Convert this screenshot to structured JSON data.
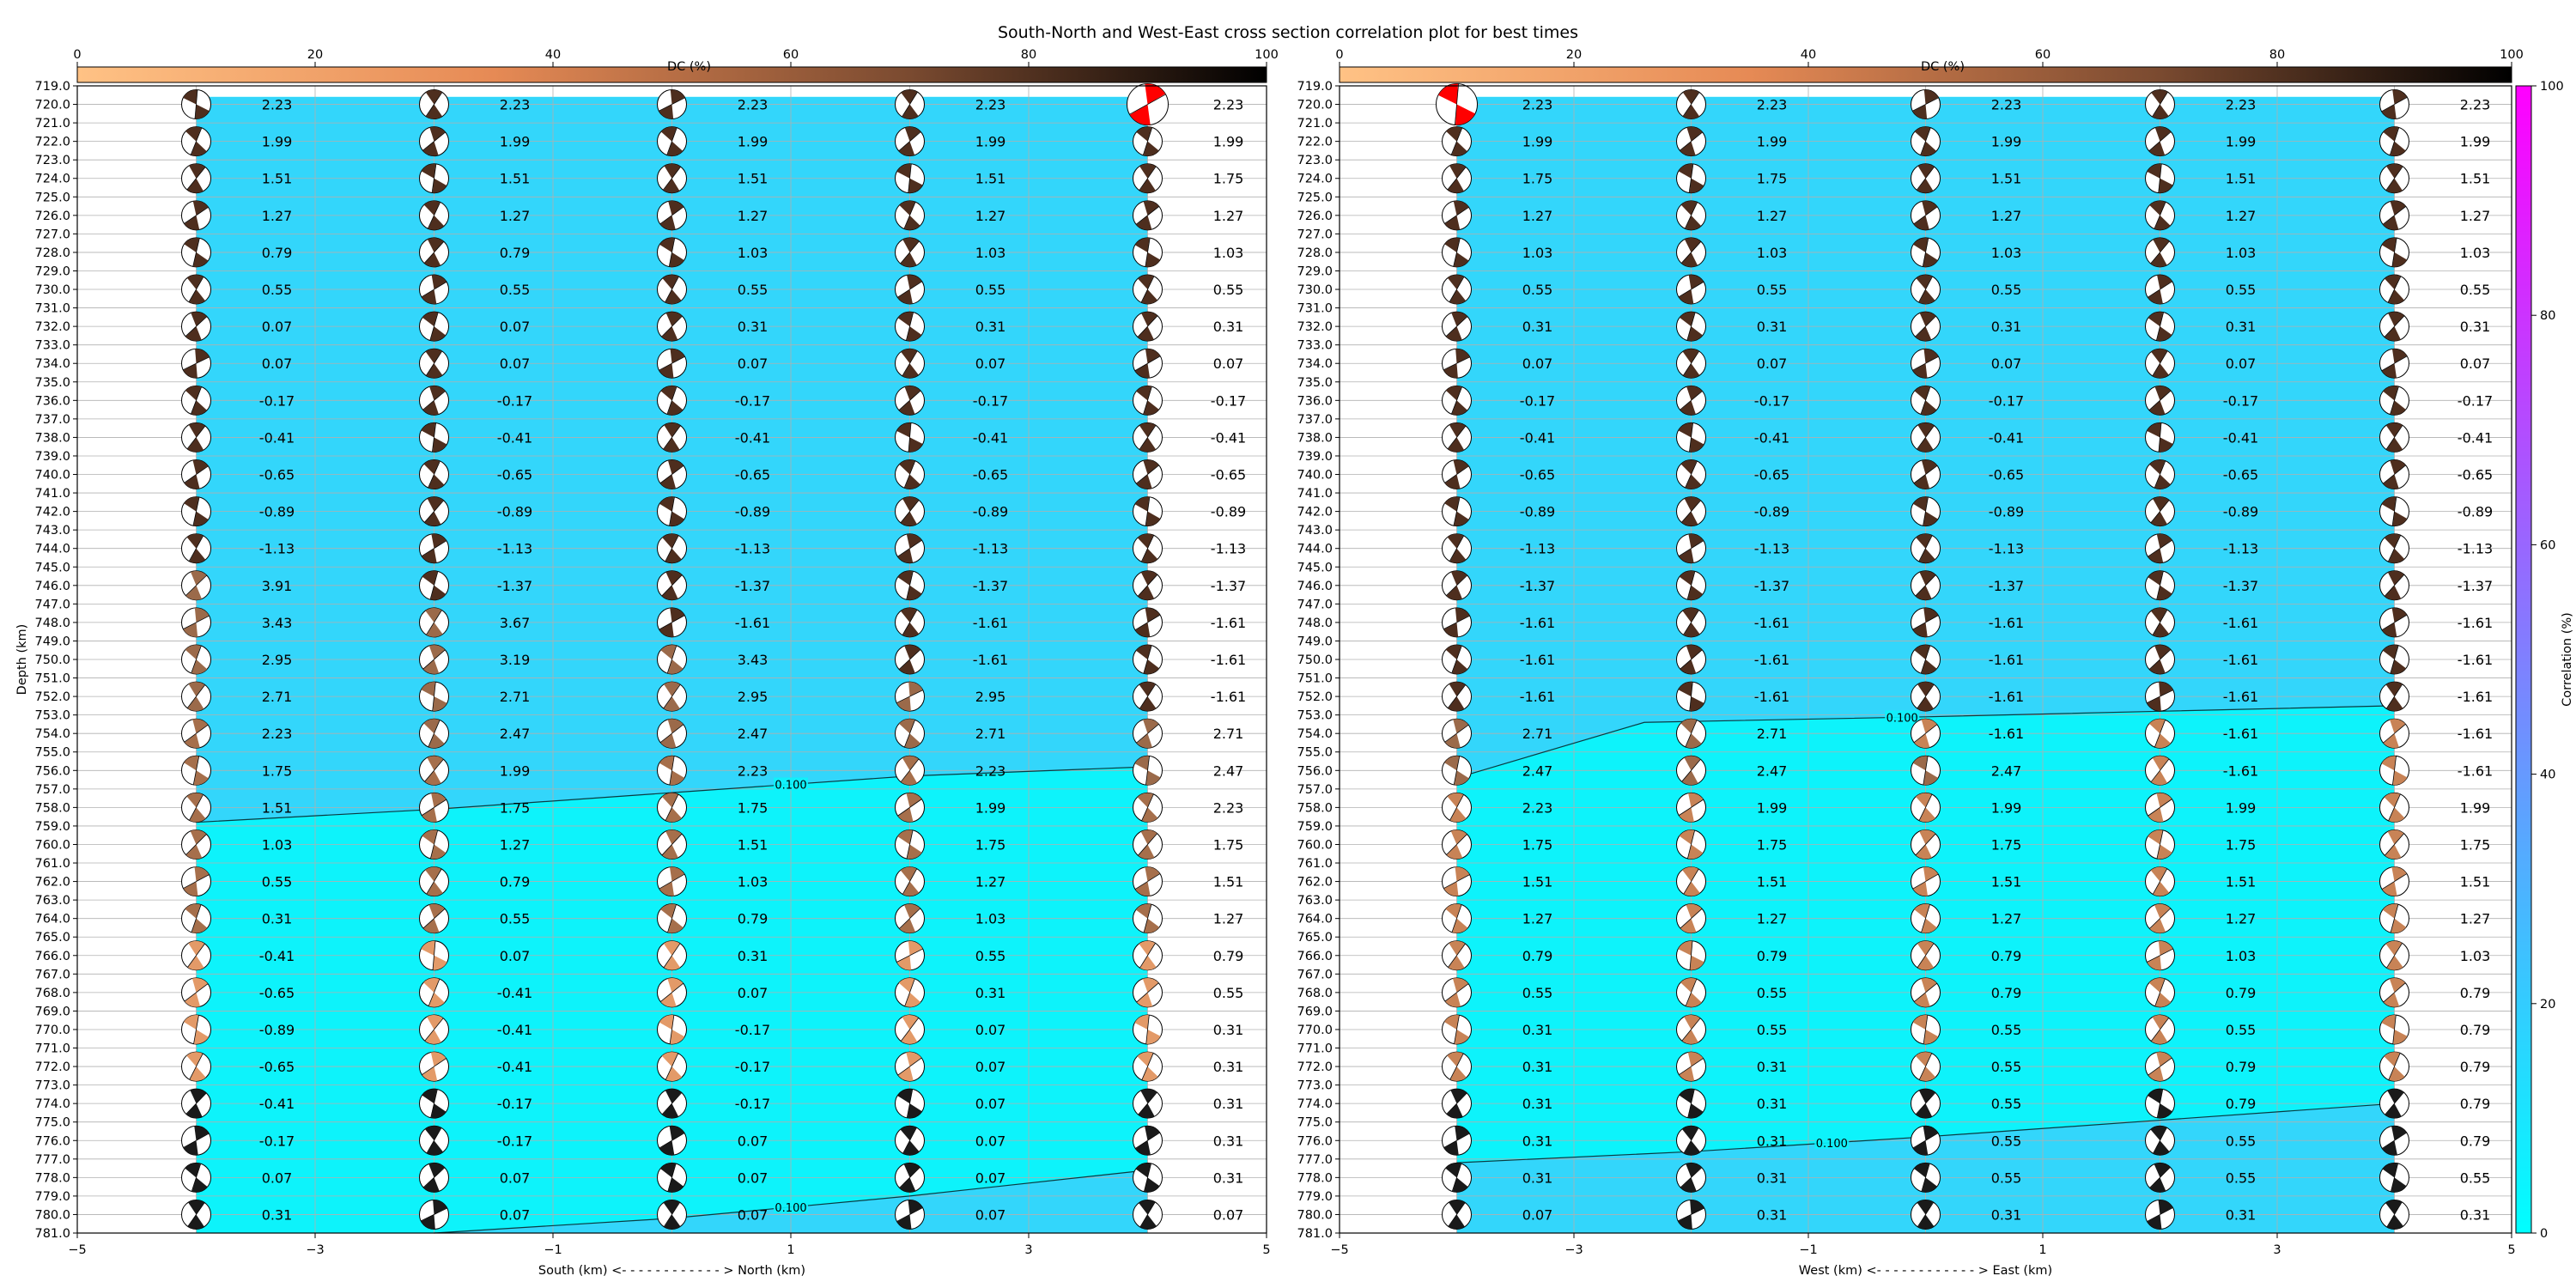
{
  "title": "South-North and West-East cross section correlation plot for best times",
  "colors": {
    "field_high": "#33d6fb",
    "field_low": "#0df3fb",
    "beachball_red": "#ff0000",
    "correlation_cmap": [
      "#00ffff",
      "#ff00ff"
    ],
    "dc_cmap": [
      "#ffb27a",
      "#000000"
    ]
  },
  "correlation_colorbar": {
    "label": "Correlation (%)",
    "ticks": [
      "0",
      "20",
      "40",
      "60",
      "80",
      "100"
    ],
    "range": [
      0,
      100
    ]
  },
  "depth_axis": {
    "label": "Depth (km)",
    "min": 719,
    "max": 781,
    "step": 1
  },
  "chart_data": [
    {
      "type": "table",
      "name": "south-north",
      "xlabel": "South (km) <- - - - - - - - - - - - > North (km)",
      "xlim": [
        -5,
        5
      ],
      "xticks": [
        "−5",
        "−3",
        "−1",
        "1",
        "3",
        "5"
      ],
      "dc_label": "DC (%)",
      "dc_ticks": [
        "0",
        "20",
        "40",
        "60",
        "80",
        "100"
      ],
      "columns_x": [
        -4,
        -2,
        0,
        2,
        4
      ],
      "depths": [
        720,
        722,
        724,
        726,
        728,
        730,
        732,
        734,
        736,
        738,
        740,
        742,
        744,
        746,
        748,
        750,
        752,
        754,
        756,
        758,
        760,
        762,
        764,
        766,
        768,
        770,
        772,
        774,
        776,
        778,
        780
      ],
      "values": [
        [
          "2.23",
          "2.23",
          "2.23",
          "2.23",
          "2.23"
        ],
        [
          "1.99",
          "1.99",
          "1.99",
          "1.99",
          "1.99"
        ],
        [
          "1.51",
          "1.51",
          "1.51",
          "1.51",
          "1.75"
        ],
        [
          "1.27",
          "1.27",
          "1.27",
          "1.27",
          "1.27"
        ],
        [
          "0.79",
          "0.79",
          "1.03",
          "1.03",
          "1.03"
        ],
        [
          "0.55",
          "0.55",
          "0.55",
          "0.55",
          "0.55"
        ],
        [
          "0.07",
          "0.07",
          "0.31",
          "0.31",
          "0.31"
        ],
        [
          "0.07",
          "0.07",
          "0.07",
          "0.07",
          "0.07"
        ],
        [
          "-0.17",
          "-0.17",
          "-0.17",
          "-0.17",
          "-0.17"
        ],
        [
          "-0.41",
          "-0.41",
          "-0.41",
          "-0.41",
          "-0.41"
        ],
        [
          "-0.65",
          "-0.65",
          "-0.65",
          "-0.65",
          "-0.65"
        ],
        [
          "-0.89",
          "-0.89",
          "-0.89",
          "-0.89",
          "-0.89"
        ],
        [
          "-1.13",
          "-1.13",
          "-1.13",
          "-1.13",
          "-1.13"
        ],
        [
          "3.91",
          "-1.37",
          "-1.37",
          "-1.37",
          "-1.37"
        ],
        [
          "3.43",
          "3.67",
          "-1.61",
          "-1.61",
          "-1.61"
        ],
        [
          "2.95",
          "3.19",
          "3.43",
          "-1.61",
          "-1.61"
        ],
        [
          "2.71",
          "2.71",
          "2.95",
          "2.95",
          "-1.61"
        ],
        [
          "2.23",
          "2.47",
          "2.47",
          "2.71",
          "2.71"
        ],
        [
          "1.75",
          "1.99",
          "2.23",
          "2.23",
          "2.47"
        ],
        [
          "1.51",
          "1.75",
          "1.75",
          "1.99",
          "2.23"
        ],
        [
          "1.03",
          "1.27",
          "1.51",
          "1.75",
          "1.75"
        ],
        [
          "0.55",
          "0.79",
          "1.03",
          "1.27",
          "1.51"
        ],
        [
          "0.31",
          "0.55",
          "0.79",
          "1.03",
          "1.27"
        ],
        [
          "-0.41",
          "0.07",
          "0.31",
          "0.55",
          "0.79"
        ],
        [
          "-0.65",
          "-0.41",
          "0.07",
          "0.31",
          "0.55"
        ],
        [
          "-0.89",
          "-0.41",
          "-0.17",
          "0.07",
          "0.31"
        ],
        [
          "-0.65",
          "-0.41",
          "-0.17",
          "0.07",
          "0.31"
        ],
        [
          "-0.41",
          "-0.17",
          "-0.17",
          "0.07",
          "0.31"
        ],
        [
          "-0.17",
          "-0.17",
          "0.07",
          "0.07",
          "0.31"
        ],
        [
          "0.07",
          "0.07",
          "0.07",
          "0.07",
          "0.31"
        ],
        [
          "0.31",
          "0.07",
          "0.07",
          "0.07",
          "0.07"
        ]
      ],
      "contours": [
        {
          "label": "0.100",
          "label_x": 1.0,
          "points": [
            [
              -4,
              758.8
            ],
            [
              -2,
              758.1
            ],
            [
              0,
              757.2
            ],
            [
              2,
              756.3
            ],
            [
              4,
              755.8
            ]
          ]
        },
        {
          "label": "0.100",
          "label_x": 1.0,
          "points": [
            [
              -2,
              781
            ],
            [
              0,
              780.2
            ],
            [
              2,
              779
            ],
            [
              4,
              777.6
            ]
          ]
        }
      ],
      "field_boundary": [
        [
          -4,
          719.6
        ],
        [
          4,
          719.6
        ],
        [
          4,
          777.6
        ],
        [
          2,
          779
        ],
        [
          0,
          780.2
        ],
        [
          -2,
          781
        ],
        [
          -4,
          781
        ]
      ]
    },
    {
      "type": "table",
      "name": "west-east",
      "xlabel": "West (km) <- - - - - - - - - - - - > East (km)",
      "xlim": [
        -5,
        5
      ],
      "xticks": [
        "−5",
        "−3",
        "−1",
        "1",
        "3",
        "5"
      ],
      "dc_label": "DC (%)",
      "dc_ticks": [
        "0",
        "20",
        "40",
        "60",
        "80",
        "100"
      ],
      "columns_x": [
        -4,
        -2,
        0,
        2,
        4
      ],
      "depths": [
        720,
        722,
        724,
        726,
        728,
        730,
        732,
        734,
        736,
        738,
        740,
        742,
        744,
        746,
        748,
        750,
        752,
        754,
        756,
        758,
        760,
        762,
        764,
        766,
        768,
        770,
        772,
        774,
        776,
        778,
        780
      ],
      "values": [
        [
          "2.23",
          "2.23",
          "2.23",
          "2.23",
          "2.23"
        ],
        [
          "1.99",
          "1.99",
          "1.99",
          "1.99",
          "1.99"
        ],
        [
          "1.75",
          "1.75",
          "1.51",
          "1.51",
          "1.51"
        ],
        [
          "1.27",
          "1.27",
          "1.27",
          "1.27",
          "1.27"
        ],
        [
          "1.03",
          "1.03",
          "1.03",
          "1.03",
          "1.03"
        ],
        [
          "0.55",
          "0.55",
          "0.55",
          "0.55",
          "0.55"
        ],
        [
          "0.31",
          "0.31",
          "0.31",
          "0.31",
          "0.31"
        ],
        [
          "0.07",
          "0.07",
          "0.07",
          "0.07",
          "0.07"
        ],
        [
          "-0.17",
          "-0.17",
          "-0.17",
          "-0.17",
          "-0.17"
        ],
        [
          "-0.41",
          "-0.41",
          "-0.41",
          "-0.41",
          "-0.41"
        ],
        [
          "-0.65",
          "-0.65",
          "-0.65",
          "-0.65",
          "-0.65"
        ],
        [
          "-0.89",
          "-0.89",
          "-0.89",
          "-0.89",
          "-0.89"
        ],
        [
          "-1.13",
          "-1.13",
          "-1.13",
          "-1.13",
          "-1.13"
        ],
        [
          "-1.37",
          "-1.37",
          "-1.37",
          "-1.37",
          "-1.37"
        ],
        [
          "-1.61",
          "-1.61",
          "-1.61",
          "-1.61",
          "-1.61"
        ],
        [
          "-1.61",
          "-1.61",
          "-1.61",
          "-1.61",
          "-1.61"
        ],
        [
          "-1.61",
          "-1.61",
          "-1.61",
          "-1.61",
          "-1.61"
        ],
        [
          "2.71",
          "2.71",
          "-1.61",
          "-1.61",
          "-1.61"
        ],
        [
          "2.47",
          "2.47",
          "2.47",
          "-1.61",
          "-1.61"
        ],
        [
          "2.23",
          "1.99",
          "1.99",
          "1.99",
          "1.99"
        ],
        [
          "1.75",
          "1.75",
          "1.75",
          "1.75",
          "1.75"
        ],
        [
          "1.51",
          "1.51",
          "1.51",
          "1.51",
          "1.51"
        ],
        [
          "1.27",
          "1.27",
          "1.27",
          "1.27",
          "1.27"
        ],
        [
          "0.79",
          "0.79",
          "0.79",
          "1.03",
          "1.03"
        ],
        [
          "0.55",
          "0.55",
          "0.79",
          "0.79",
          "0.79"
        ],
        [
          "0.31",
          "0.55",
          "0.55",
          "0.55",
          "0.79"
        ],
        [
          "0.31",
          "0.31",
          "0.55",
          "0.79",
          "0.79"
        ],
        [
          "0.31",
          "0.31",
          "0.55",
          "0.79",
          "0.79"
        ],
        [
          "0.31",
          "0.31",
          "0.55",
          "0.55",
          "0.79"
        ],
        [
          "0.31",
          "0.31",
          "0.55",
          "0.55",
          "0.55"
        ],
        [
          "0.07",
          "0.31",
          "0.31",
          "0.31",
          "0.31"
        ]
      ],
      "contours": [
        {
          "label": "0.100",
          "label_x": -0.2,
          "points": [
            [
              -4,
              756.4
            ],
            [
              -2.4,
              753.4
            ],
            [
              0,
              753.1
            ],
            [
              2,
              752.8
            ],
            [
              4,
              752.5
            ]
          ]
        },
        {
          "label": "0.100",
          "label_x": -0.8,
          "points": [
            [
              -4,
              777.2
            ],
            [
              -2,
              776.6
            ],
            [
              0,
              775.8
            ],
            [
              2,
              774.9
            ],
            [
              4,
              774
            ]
          ]
        }
      ],
      "field_boundary": [
        [
          -4,
          719.6
        ],
        [
          4,
          719.6
        ],
        [
          4,
          781
        ],
        [
          -4,
          781
        ]
      ]
    }
  ]
}
